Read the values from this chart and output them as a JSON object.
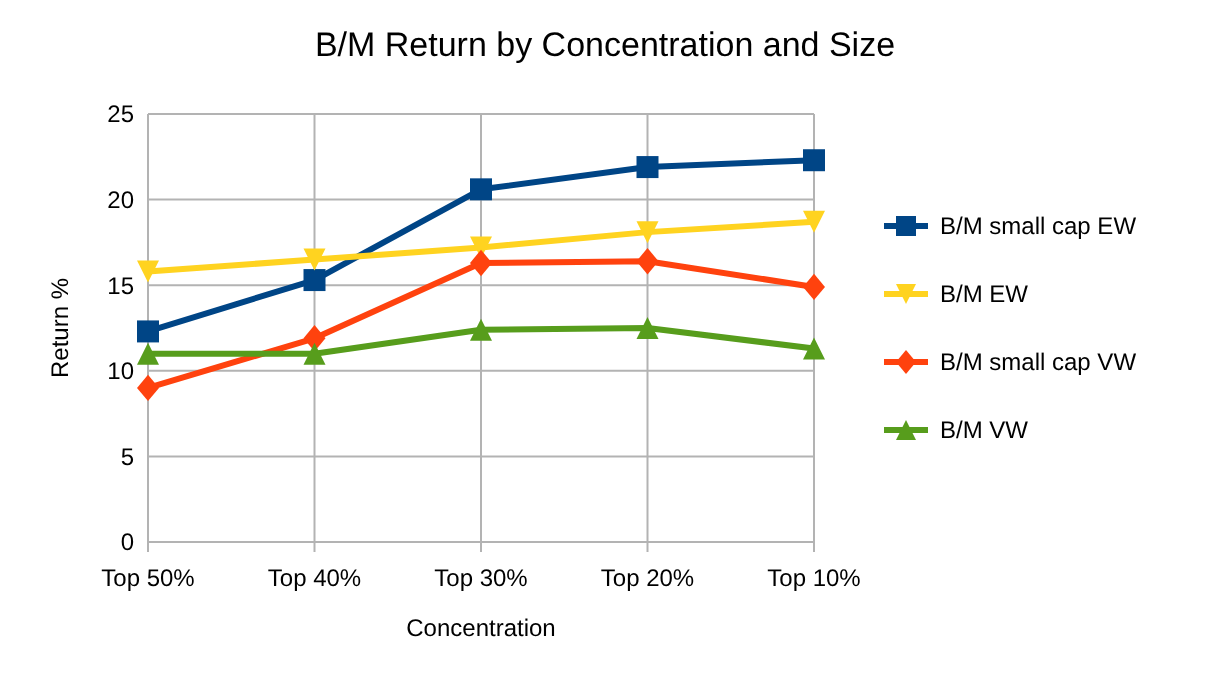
{
  "chart_data": {
    "type": "line",
    "title": "B/M Return by Concentration and Size",
    "xlabel": "Concentration",
    "ylabel": "Return %",
    "categories": [
      "Top 50%",
      "Top 40%",
      "Top 30%",
      "Top 20%",
      "Top 10%"
    ],
    "series": [
      {
        "name": "B/M small cap EW",
        "color": "#004586",
        "marker": "square",
        "values": [
          12.3,
          15.3,
          20.6,
          21.9,
          22.3
        ]
      },
      {
        "name": "B/M EW",
        "color": "#ffd320",
        "marker": "triangle-down",
        "values": [
          15.8,
          16.5,
          17.2,
          18.1,
          18.7
        ]
      },
      {
        "name": "B/M small cap VW",
        "color": "#ff420e",
        "marker": "diamond",
        "values": [
          9.0,
          11.9,
          16.3,
          16.4,
          14.9
        ]
      },
      {
        "name": "B/M VW",
        "color": "#579d1c",
        "marker": "triangle",
        "values": [
          11.0,
          11.0,
          12.4,
          12.5,
          11.3
        ]
      }
    ],
    "ylim": [
      0,
      25
    ],
    "yticks": [
      0,
      5,
      10,
      15,
      20,
      25
    ],
    "grid": true,
    "legend": "right"
  }
}
